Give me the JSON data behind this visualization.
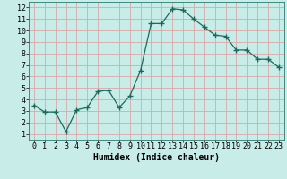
{
  "x": [
    0,
    1,
    2,
    3,
    4,
    5,
    6,
    7,
    8,
    9,
    10,
    11,
    12,
    13,
    14,
    15,
    16,
    17,
    18,
    19,
    20,
    21,
    22,
    23
  ],
  "y": [
    3.5,
    2.9,
    2.9,
    1.2,
    3.1,
    3.3,
    4.7,
    4.8,
    3.3,
    4.3,
    6.5,
    10.6,
    10.6,
    11.9,
    11.8,
    11.0,
    10.3,
    9.6,
    9.5,
    8.3,
    8.3,
    7.5,
    7.5,
    6.8
  ],
  "line_color": "#1a6b5e",
  "marker": "+",
  "marker_size": 4,
  "marker_linewidth": 1.0,
  "line_width": 0.9,
  "bg_color": "#c8ece8",
  "grid_color": "#d8a8a8",
  "xlabel": "Humidex (Indice chaleur)",
  "xlabel_fontsize": 7,
  "tick_fontsize": 6,
  "ylim": [
    0.5,
    12.5
  ],
  "xlim": [
    -0.5,
    23.5
  ],
  "yticks": [
    1,
    2,
    3,
    4,
    5,
    6,
    7,
    8,
    9,
    10,
    11,
    12
  ],
  "xticks": [
    0,
    1,
    2,
    3,
    4,
    5,
    6,
    7,
    8,
    9,
    10,
    11,
    12,
    13,
    14,
    15,
    16,
    17,
    18,
    19,
    20,
    21,
    22,
    23
  ]
}
